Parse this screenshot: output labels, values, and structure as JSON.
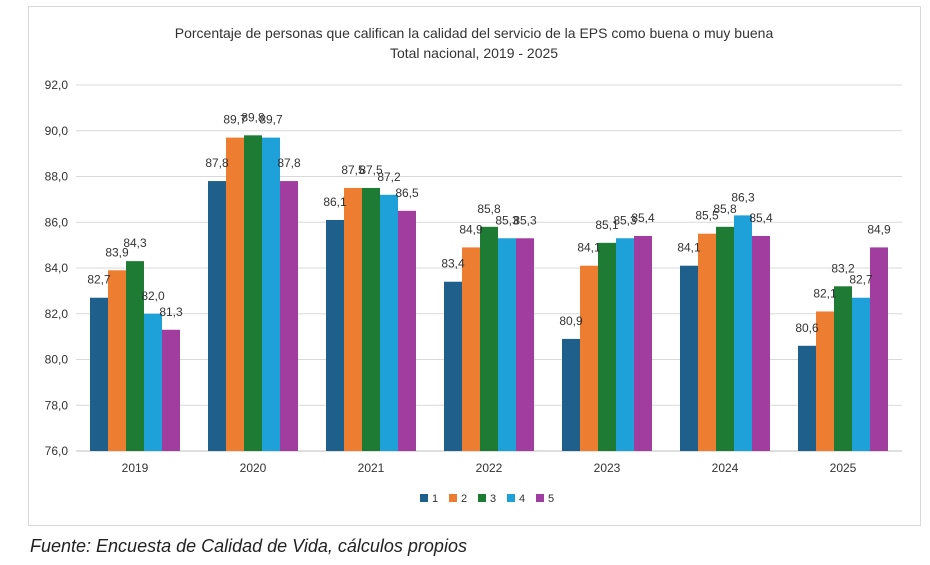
{
  "chart_data": {
    "type": "bar",
    "title": "Porcentaje de personas que califican la calidad del servicio de la EPS como buena o muy buena",
    "subtitle": "Total nacional, 2019 - 2025",
    "xlabel": "",
    "ylabel": "",
    "ylim": [
      76,
      92
    ],
    "yticks": [
      "76,0",
      "78,0",
      "80,0",
      "82,0",
      "84,0",
      "86,0",
      "88,0",
      "90,0",
      "92,0"
    ],
    "grid": true,
    "legend_position": "bottom",
    "categories": [
      "2019",
      "2020",
      "2021",
      "2022",
      "2023",
      "2024",
      "2025"
    ],
    "series": [
      {
        "name": "1",
        "color": "#1f5f8b",
        "values": [
          82.7,
          87.8,
          86.1,
          83.4,
          80.9,
          84.1,
          80.6
        ],
        "labels": [
          "82,7",
          "87,8",
          "86,1",
          "83,4",
          "80,9",
          "84,1",
          "80,6"
        ]
      },
      {
        "name": "2",
        "color": "#ed7d31",
        "values": [
          83.9,
          89.7,
          87.5,
          84.9,
          84.1,
          85.5,
          82.1
        ],
        "labels": [
          "83,9",
          "89,7",
          "87,5",
          "84,9",
          "84,1",
          "85,5",
          "82,1"
        ]
      },
      {
        "name": "3",
        "color": "#1e7b34",
        "values": [
          84.3,
          89.8,
          87.5,
          85.8,
          85.1,
          85.8,
          83.2
        ],
        "labels": [
          "84,3",
          "89,8",
          "87,5",
          "85,8",
          "85,1",
          "85,8",
          "83,2"
        ]
      },
      {
        "name": "4",
        "color": "#1ea0d8",
        "values": [
          82.0,
          89.7,
          87.2,
          85.3,
          85.3,
          86.3,
          82.7
        ],
        "labels": [
          "82,0",
          "89,7",
          "87,2",
          "85,3",
          "85,3",
          "86,3",
          "82,7"
        ]
      },
      {
        "name": "5",
        "color": "#a13d9e",
        "values": [
          81.3,
          87.8,
          86.5,
          85.3,
          85.4,
          85.4,
          84.9
        ],
        "labels": [
          "81,3",
          "87,8",
          "86,5",
          "85,3",
          "85,4",
          "85,4",
          "84,9"
        ]
      }
    ]
  },
  "source_note": "Fuente: Encuesta de Calidad de Vida, cálculos propios"
}
